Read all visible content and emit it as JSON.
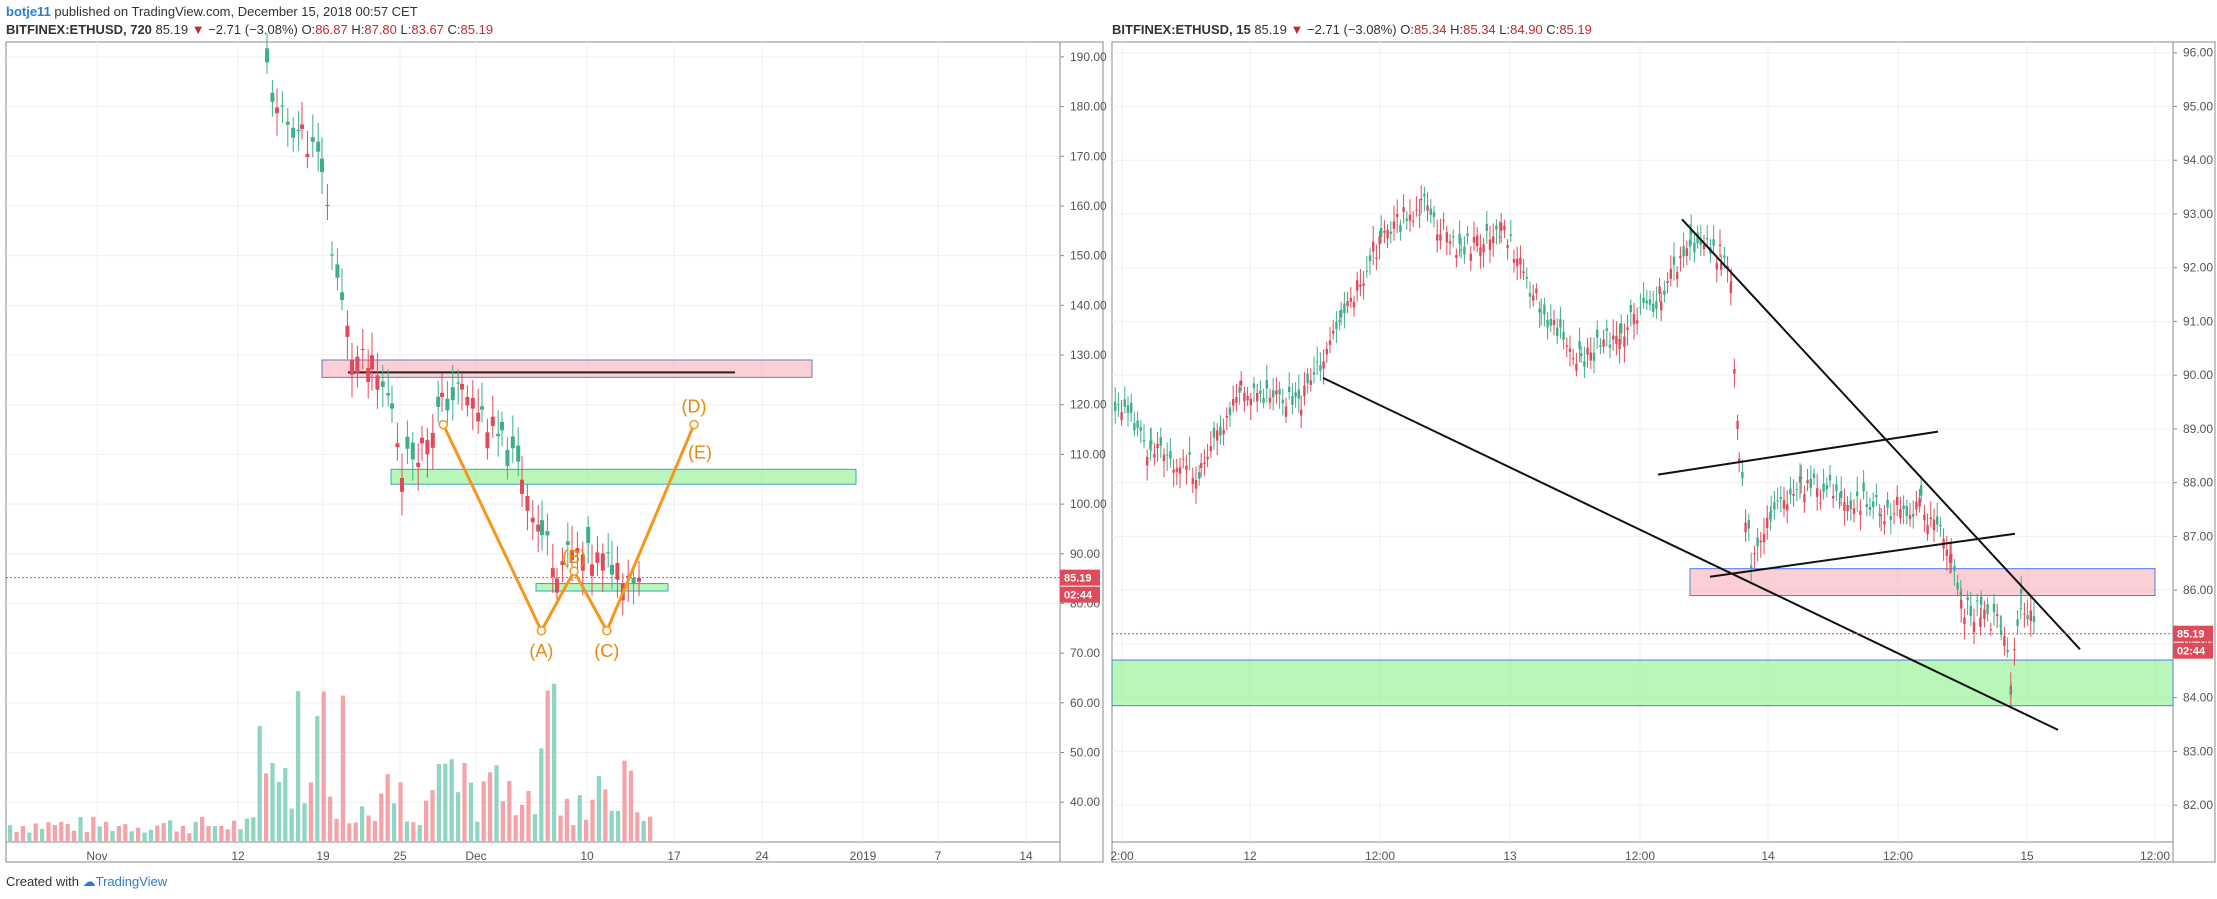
{
  "header": {
    "author": "botje11",
    "rest": " published on TradingView.com, December 15, 2018 00:57 CET"
  },
  "footer": {
    "created": "Created with",
    "brand": "TradingView"
  },
  "colors": {
    "up": "#3fae8b",
    "down": "#e04a5a",
    "support": "#7ff07f",
    "resistance": "#f9a8b0",
    "pattern": "#f5961e"
  },
  "chart_data": [
    {
      "type": "candlestick",
      "symbol": "BITFINEX:ETHUSD, 720",
      "last": "85.19",
      "change": "−2.71 (−3.08%)",
      "O": "86.87",
      "H": "87.80",
      "L": "83.67",
      "C": "85.19",
      "y_ticks": [
        "190.00",
        "180.00",
        "170.00",
        "160.00",
        "150.00",
        "140.00",
        "130.00",
        "120.00",
        "110.00",
        "100.00",
        "90.00",
        "80.00",
        "70.00",
        "60.00",
        "50.00",
        "40.00"
      ],
      "x_ticks": [
        "Nov",
        "12",
        "19",
        "25",
        "Dec",
        "10",
        "17",
        "24",
        "2019",
        "7",
        "14"
      ],
      "price_label": "85.19",
      "timer_label": "02:44",
      "ylim": [
        34,
        193
      ],
      "pattern_labels": [
        "(A)",
        "(B)",
        "(C)",
        "(D)",
        "(E)"
      ],
      "pattern_points": [
        {
          "date": "2018-11-28",
          "price": 116
        },
        {
          "date": "2018-12-07",
          "price": 74.5
        },
        {
          "date": "2018-12-10",
          "price": 86.5
        },
        {
          "date": "2018-12-13",
          "price": 74.5
        },
        {
          "date": "2018-12-21",
          "price": 116
        }
      ],
      "resistance_zone": [
        125.5,
        129
      ],
      "support_zone": [
        104,
        107
      ],
      "small_zone": [
        82.5,
        84
      ]
    },
    {
      "type": "candlestick",
      "symbol": "BITFINEX:ETHUSD, 15",
      "last": "85.19",
      "change": "−2.71 (−3.08%)",
      "O": "85.34",
      "H": "85.34",
      "L": "84.90",
      "C": "85.19",
      "y_ticks": [
        "96.00",
        "95.00",
        "94.00",
        "93.00",
        "92.00",
        "91.00",
        "90.00",
        "89.00",
        "88.00",
        "87.00",
        "86.00",
        "85.00",
        "84.00",
        "83.00",
        "82.00"
      ],
      "x_ticks": [
        "2:00",
        "12",
        "12:00",
        "13",
        "12:00",
        "14",
        "12:00",
        "15",
        "12:00"
      ],
      "price_label": "85.19",
      "timer_label": "02:44",
      "ylim": [
        81.5,
        96.2
      ],
      "resistance_zone": [
        85.9,
        86.4
      ],
      "support_zone": [
        83.85,
        84.7
      ]
    }
  ]
}
